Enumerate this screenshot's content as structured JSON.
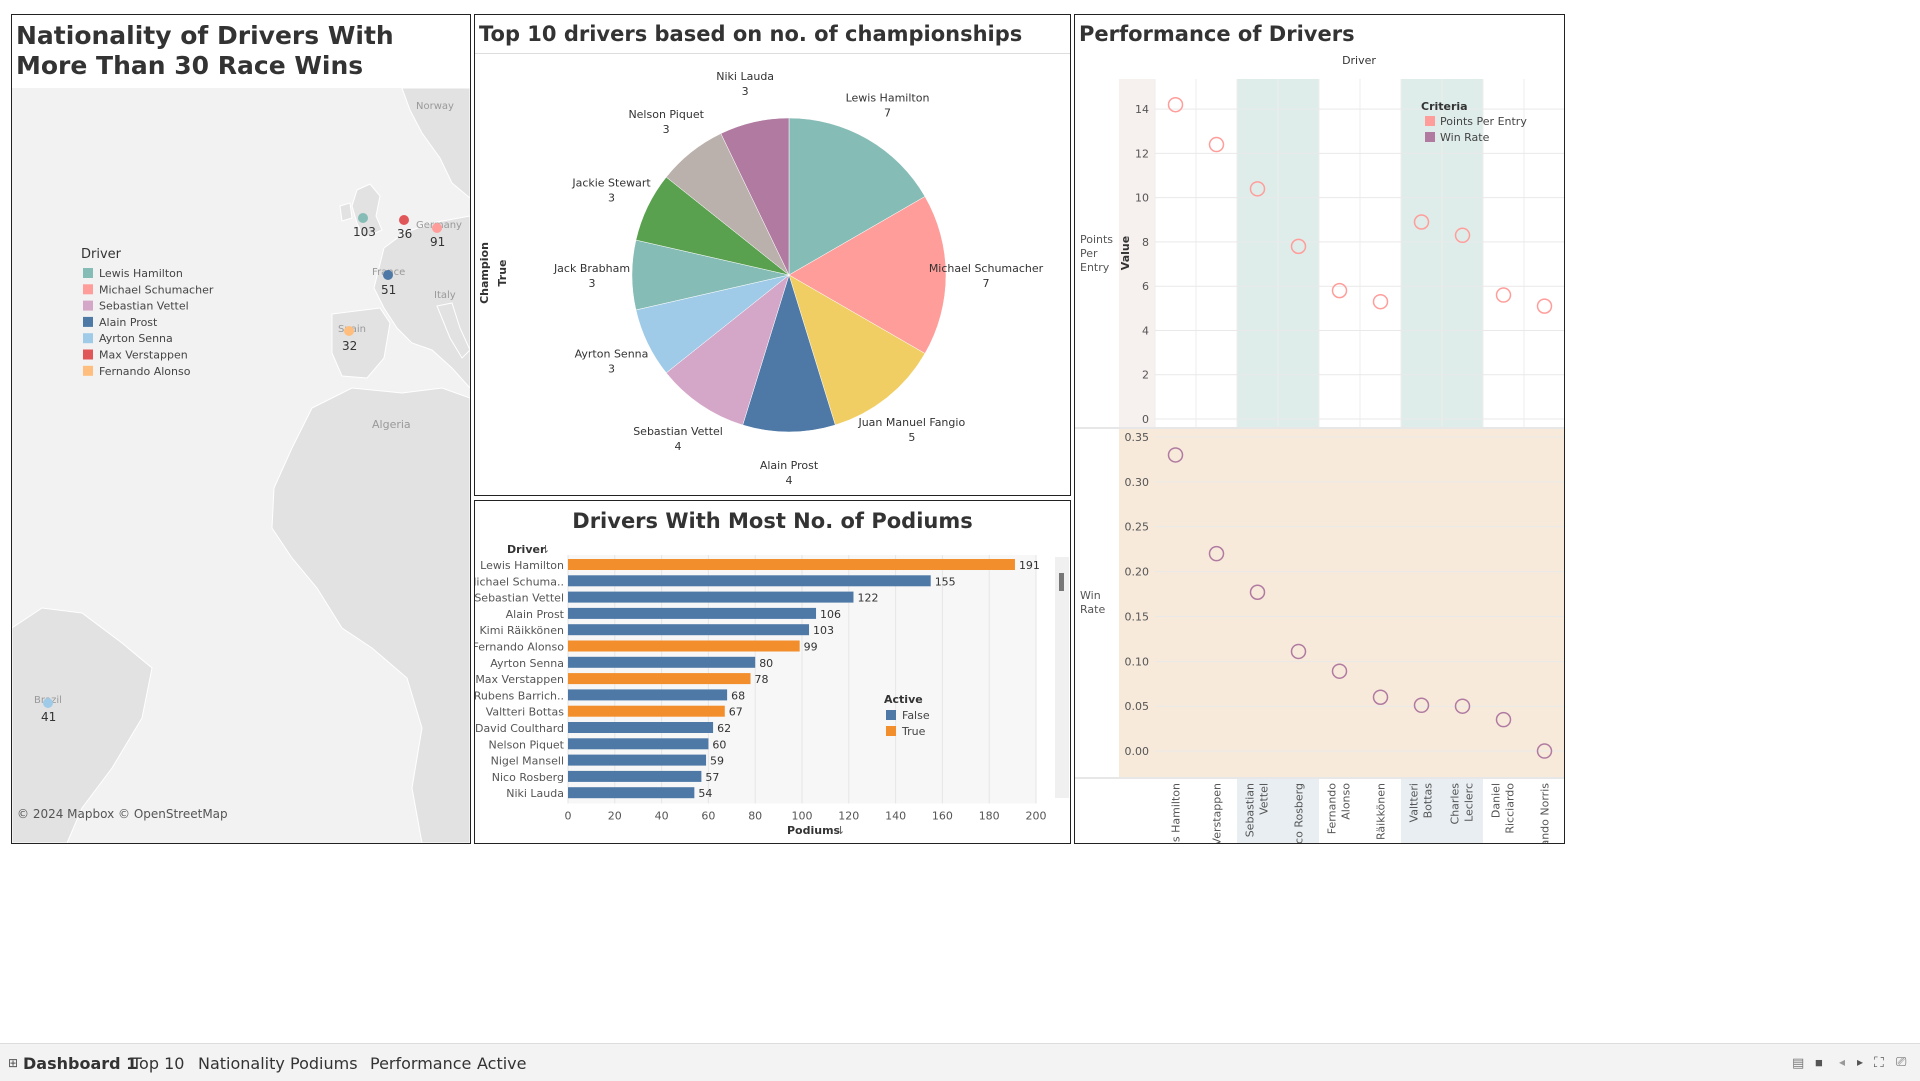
{
  "dashboard": {
    "map_title": "Nationality of Drivers With More Than 30 Race Wins",
    "pie_title": "Top 10 drivers based on no. of championships",
    "bar_title": "Drivers With Most No. of Podiums",
    "perf_title": "Performance of Drivers"
  },
  "map": {
    "legend_title": "Driver",
    "attribution": "© 2024 Mapbox © OpenStreetMap",
    "place_labels": [
      "Norway",
      "Germany",
      "France",
      "Italy",
      "Spain",
      "Algeria",
      "Brazil"
    ],
    "legend": [
      {
        "name": "Lewis Hamilton",
        "color": "#86bcb6",
        "wins": "103"
      },
      {
        "name": "Michael Schumacher",
        "color": "#ff9d9a",
        "wins": "91"
      },
      {
        "name": "Sebastian Vettel",
        "color": "#d4a6c8",
        "wins": ""
      },
      {
        "name": "Alain Prost",
        "color": "#4e79a7",
        "wins": "51"
      },
      {
        "name": "Ayrton Senna",
        "color": "#a0cbe8",
        "wins": "41"
      },
      {
        "name": "Max Verstappen",
        "color": "#e15759",
        "wins": "36"
      },
      {
        "name": "Fernando Alonso",
        "color": "#ffbe7d",
        "wins": "32"
      }
    ]
  },
  "chart_data": [
    {
      "type": "pie",
      "title": "Top 10 drivers based on no. of championships",
      "row_header": "Champion",
      "row_value": "True",
      "slices": [
        {
          "label": "Lewis Hamilton",
          "value": 7,
          "color": "#86bcb6"
        },
        {
          "label": "Michael Schumacher",
          "value": 7,
          "color": "#ff9d9a"
        },
        {
          "label": "Juan Manuel Fangio",
          "value": 5,
          "color": "#f1ce63"
        },
        {
          "label": "Alain Prost",
          "value": 4,
          "color": "#4e79a7"
        },
        {
          "label": "Sebastian Vettel",
          "value": 4,
          "color": "#d4a6c8"
        },
        {
          "label": "Ayrton Senna",
          "value": 3,
          "color": "#a0cbe8"
        },
        {
          "label": "Jack Brabham",
          "value": 3,
          "color": "#86bcb6"
        },
        {
          "label": "Jackie Stewart",
          "value": 3,
          "color": "#59a14f"
        },
        {
          "label": "Nelson Piquet",
          "value": 3,
          "color": "#bab0ac"
        },
        {
          "label": "Niki Lauda",
          "value": 3,
          "color": "#b07aa1"
        }
      ]
    },
    {
      "type": "bar",
      "title": "Drivers With Most No. of Podiums",
      "ylabel": "Driver",
      "xlabel": "Podiums",
      "xlim": [
        0,
        200
      ],
      "xticks": [
        0,
        20,
        40,
        60,
        80,
        100,
        120,
        140,
        160,
        180,
        200
      ],
      "legend_title": "Active",
      "legend": [
        {
          "name": "False",
          "color": "#4e79a7"
        },
        {
          "name": "True",
          "color": "#f28e2b"
        }
      ],
      "categories": [
        "Lewis Hamilton",
        "Michael Schuma..",
        "Sebastian Vettel",
        "Alain Prost",
        "Kimi Räikkönen",
        "Fernando Alonso",
        "Ayrton Senna",
        "Max Verstappen",
        "Rubens Barrich..",
        "Valtteri Bottas",
        "David Coulthard",
        "Nelson Piquet",
        "Nigel Mansell",
        "Nico Rosberg",
        "Niki Lauda"
      ],
      "values": [
        191,
        155,
        122,
        106,
        103,
        99,
        80,
        78,
        68,
        67,
        62,
        60,
        59,
        57,
        54
      ],
      "active": [
        true,
        false,
        false,
        false,
        false,
        true,
        false,
        true,
        false,
        true,
        false,
        false,
        false,
        false,
        false
      ]
    },
    {
      "type": "scatter",
      "title": "Performance of Drivers",
      "column_header": "Driver",
      "value_axis": "Value",
      "legend_title": "Criteria",
      "legend": [
        {
          "name": "Points Per Entry",
          "color": "#ff9d9a"
        },
        {
          "name": "Win Rate",
          "color": "#b07aa1"
        }
      ],
      "drivers": [
        "Lewis Hamilton",
        "Max Verstappen",
        "Sebastian Vettel",
        "Nico Rosberg",
        "Fernando Alonso",
        "Kimi Räikkönen",
        "Valtteri Bottas",
        "Charles Leclerc",
        "Daniel Ricciardo",
        "Lando Norris"
      ],
      "rows": [
        {
          "label": "Points Per Entry",
          "ylim": [
            0,
            15
          ],
          "yticks": [
            "0",
            "2",
            "4",
            "6",
            "8",
            "10",
            "12",
            "14"
          ],
          "values": [
            14.2,
            12.4,
            10.4,
            7.8,
            5.8,
            5.3,
            8.9,
            8.3,
            5.6,
            5.1
          ]
        },
        {
          "label": "Win Rate",
          "ylim": [
            -0.02,
            0.35
          ],
          "yticks": [
            "0.00",
            "0.05",
            "0.10",
            "0.15",
            "0.20",
            "0.25",
            "0.30",
            "0.35"
          ],
          "values": [
            0.33,
            0.22,
            0.177,
            0.111,
            0.089,
            0.06,
            0.051,
            0.05,
            0.035,
            0.0
          ]
        }
      ]
    }
  ],
  "tabs": [
    "Dashboard 1",
    "Top 10",
    "Nationality",
    "Podiums",
    "Performance",
    "Active"
  ]
}
